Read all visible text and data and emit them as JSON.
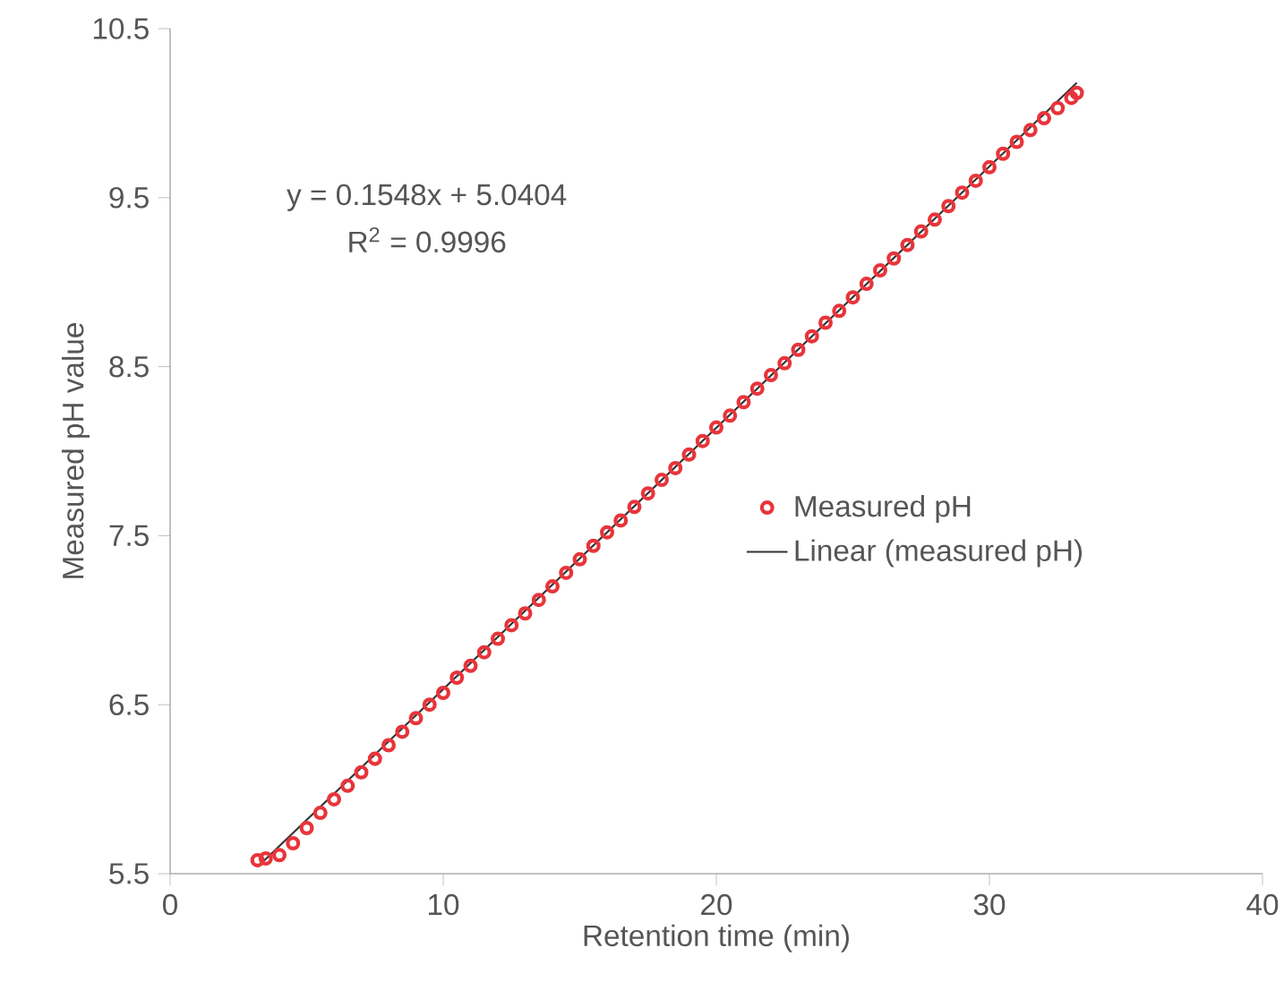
{
  "chart_data": {
    "type": "scatter",
    "xlabel": "Retention time (min)",
    "ylabel": "Measured pH value",
    "xlim": [
      0,
      40
    ],
    "ylim": [
      5.5,
      10.5
    ],
    "xticks": [
      0,
      10,
      20,
      30,
      40
    ],
    "yticks": [
      {
        "value": 5.5,
        "label": "5.5"
      },
      {
        "value": 6.5,
        "label": "6.5"
      },
      {
        "value": 7.5,
        "label": "7.5"
      },
      {
        "value": 8.5,
        "label": "8.5"
      },
      {
        "value": 9.5,
        "label": "9.5"
      },
      {
        "value": 10.5,
        "label": "10.5"
      }
    ],
    "annotations": [
      "y = 0.1548x + 5.0404",
      "R$^{2}$ = 0.9996"
    ],
    "legend": "right",
    "grid": false,
    "series": [
      {
        "name": "Measured pH",
        "marker": "circle",
        "color": "#e8343a",
        "x": [
          3.2,
          3.5,
          4.0,
          4.5,
          5.0,
          5.5,
          6.0,
          6.5,
          7.0,
          7.5,
          8.0,
          8.5,
          9.0,
          9.5,
          10,
          10.5,
          11,
          11.5,
          12,
          12.5,
          13,
          13.5,
          14,
          14.5,
          15,
          15.5,
          16,
          16.5,
          17,
          17.5,
          18,
          18.5,
          19,
          19.5,
          20,
          20.5,
          21,
          21.5,
          22,
          22.5,
          23,
          23.5,
          24,
          24.5,
          25,
          25.5,
          26,
          26.5,
          27,
          27.5,
          28,
          28.5,
          29,
          29.5,
          30,
          30.5,
          31,
          31.5,
          32,
          32.5,
          33.0,
          33.2
        ],
        "values": [
          5.58,
          5.59,
          5.61,
          5.68,
          5.77,
          5.86,
          5.94,
          6.02,
          6.1,
          6.18,
          6.26,
          6.34,
          6.42,
          6.5,
          6.57,
          6.66,
          6.73,
          6.81,
          6.89,
          6.97,
          7.04,
          7.12,
          7.2,
          7.28,
          7.36,
          7.44,
          7.52,
          7.59,
          7.67,
          7.75,
          7.83,
          7.9,
          7.98,
          8.06,
          8.14,
          8.21,
          8.29,
          8.37,
          8.45,
          8.52,
          8.6,
          8.68,
          8.76,
          8.83,
          8.91,
          8.99,
          9.07,
          9.14,
          9.22,
          9.3,
          9.37,
          9.45,
          9.53,
          9.6,
          9.68,
          9.76,
          9.83,
          9.9,
          9.97,
          10.03,
          10.09,
          10.12
        ]
      },
      {
        "name": "Linear (measured pH)",
        "type": "line",
        "marker": "none",
        "line_style": "solid",
        "color": "#333333",
        "x": [
          3.2,
          33.2
        ],
        "values": [
          5.54,
          10.18
        ]
      }
    ]
  }
}
